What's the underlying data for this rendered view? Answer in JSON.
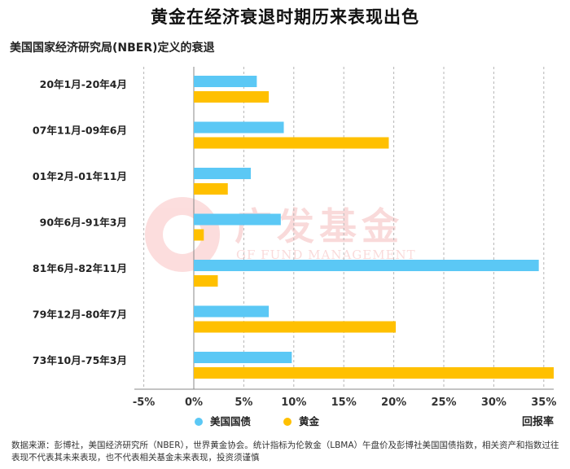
{
  "title": "黄金在经济衰退时期历来表现出色",
  "subtitle": "美国国家经济研究局(NBER)定义的衰退",
  "watermark": {
    "brand": "广发基金",
    "brand_en": "GF FUND MANAGEMENT"
  },
  "source": "数据来源：彭博社，美国经济研究所（NBER），世界黄金协会。统计指标为伦敦金（LBMA）午盘价及彭博社美国国债指数，相关资产和指数过往表现不代表其未来表现，也不代表相关基金未来表现，投资须谨慎",
  "colors": {
    "bond": "#5BC8F5",
    "gold": "#FFC000",
    "grid": "#b5b5b5",
    "axis": "#888888"
  },
  "chart_data": {
    "type": "bar",
    "orientation": "horizontal",
    "title": "黄金在经济衰退时期历来表现出色",
    "subtitle": "美国国家经济研究局(NBER)定义的衰退",
    "xlabel": "回报率",
    "xlim": [
      -5,
      36
    ],
    "xticks": [
      -5,
      0,
      5,
      10,
      15,
      20,
      25,
      30,
      35
    ],
    "xtick_labels": [
      "-5%",
      "0%",
      "5%",
      "10%",
      "15%",
      "20%",
      "25%",
      "30%",
      "35%"
    ],
    "grid": "vertical-dashed",
    "legend_position": "bottom-left",
    "categories": [
      "20年1月-20年4月",
      "07年11月-09年6月",
      "01年2月-01年11月",
      "90年6月-91年3月",
      "81年6月-82年11月",
      "79年12月-80年7月",
      "73年10月-75年3月"
    ],
    "series": [
      {
        "name": "美国国债",
        "color": "#5BC8F5",
        "values": [
          6.3,
          9.0,
          5.7,
          8.7,
          34.5,
          7.5,
          9.8
        ]
      },
      {
        "name": "黄金",
        "color": "#FFC000",
        "values": [
          7.5,
          19.5,
          3.4,
          1.0,
          2.4,
          20.2,
          36.0
        ]
      }
    ]
  }
}
